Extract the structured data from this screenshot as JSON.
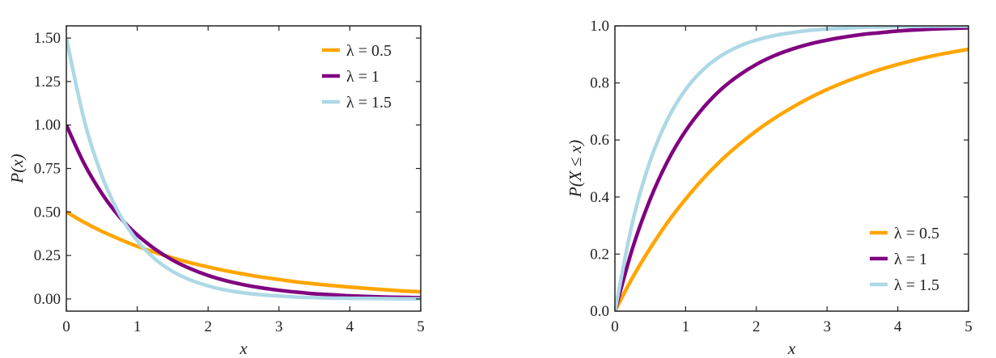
{
  "chart_data": [
    {
      "type": "line",
      "title": "",
      "xlabel": "x",
      "ylabel": "P(x)",
      "xlim": [
        0,
        5
      ],
      "ylim": [
        -0.07,
        1.57
      ],
      "xticks": [
        "0",
        "1",
        "2",
        "3",
        "4",
        "5"
      ],
      "xtick_values": [
        0,
        1,
        2,
        3,
        4,
        5
      ],
      "yticks": [
        "0.00",
        "0.25",
        "0.50",
        "0.75",
        "1.00",
        "1.25",
        "1.50"
      ],
      "ytick_values": [
        0,
        0.25,
        0.5,
        0.75,
        1.0,
        1.25,
        1.5
      ],
      "grid": false,
      "legend_position": "top-right",
      "x": [
        0,
        0.25,
        0.5,
        0.75,
        1,
        1.25,
        1.5,
        1.75,
        2,
        2.25,
        2.5,
        2.75,
        3,
        3.25,
        3.5,
        3.75,
        4,
        4.25,
        4.5,
        4.75,
        5
      ],
      "series": [
        {
          "name": "λ = 0.5",
          "color": "#FFA500",
          "values": [
            0.5,
            0.441,
            0.389,
            0.344,
            0.303,
            0.268,
            0.236,
            0.208,
            0.184,
            0.162,
            0.143,
            0.126,
            0.112,
            0.098,
            0.087,
            0.077,
            0.068,
            0.06,
            0.053,
            0.046,
            0.041
          ]
        },
        {
          "name": "λ = 1",
          "color": "#800080",
          "values": [
            1,
            0.779,
            0.607,
            0.472,
            0.368,
            0.287,
            0.223,
            0.174,
            0.135,
            0.105,
            0.082,
            0.064,
            0.05,
            0.039,
            0.03,
            0.024,
            0.018,
            0.014,
            0.011,
            0.009,
            0.007
          ]
        },
        {
          "name": "λ = 1.5",
          "color": "#ADD8E6",
          "values": [
            1.5,
            1.031,
            0.709,
            0.487,
            0.335,
            0.23,
            0.158,
            0.109,
            0.075,
            0.051,
            0.035,
            0.024,
            0.017,
            0.011,
            0.008,
            0.005,
            0.004,
            0.003,
            0.002,
            0.001,
            0.001
          ]
        }
      ]
    },
    {
      "type": "line",
      "title": "",
      "xlabel": "x",
      "ylabel": "P(X ≤ x)",
      "xlim": [
        0,
        5
      ],
      "ylim": [
        0,
        1
      ],
      "xticks": [
        "0",
        "1",
        "2",
        "3",
        "4",
        "5"
      ],
      "xtick_values": [
        0,
        1,
        2,
        3,
        4,
        5
      ],
      "yticks": [
        "0.0",
        "0.2",
        "0.4",
        "0.6",
        "0.8",
        "1.0"
      ],
      "ytick_values": [
        0,
        0.2,
        0.4,
        0.6,
        0.8,
        1.0
      ],
      "grid": false,
      "legend_position": "bottom-right",
      "x": [
        0,
        0.25,
        0.5,
        0.75,
        1,
        1.25,
        1.5,
        1.75,
        2,
        2.25,
        2.5,
        2.75,
        3,
        3.25,
        3.5,
        3.75,
        4,
        4.25,
        4.5,
        4.75,
        5
      ],
      "series": [
        {
          "name": "λ = 0.5",
          "color": "#FFA500",
          "values": [
            0,
            0.118,
            0.221,
            0.313,
            0.393,
            0.465,
            0.528,
            0.583,
            0.632,
            0.675,
            0.713,
            0.747,
            0.777,
            0.803,
            0.826,
            0.847,
            0.865,
            0.881,
            0.895,
            0.907,
            0.918
          ]
        },
        {
          "name": "λ = 1",
          "color": "#800080",
          "values": [
            0,
            0.221,
            0.393,
            0.528,
            0.632,
            0.713,
            0.777,
            0.826,
            0.865,
            0.895,
            0.918,
            0.936,
            0.95,
            0.961,
            0.97,
            0.976,
            0.982,
            0.986,
            0.989,
            0.991,
            0.993
          ]
        },
        {
          "name": "λ = 1.5",
          "color": "#ADD8E6",
          "values": [
            0,
            0.313,
            0.528,
            0.675,
            0.777,
            0.847,
            0.895,
            0.928,
            0.95,
            0.966,
            0.976,
            0.984,
            0.989,
            0.992,
            0.995,
            0.996,
            0.998,
            0.998,
            0.999,
            0.999,
            0.999
          ]
        }
      ]
    }
  ]
}
